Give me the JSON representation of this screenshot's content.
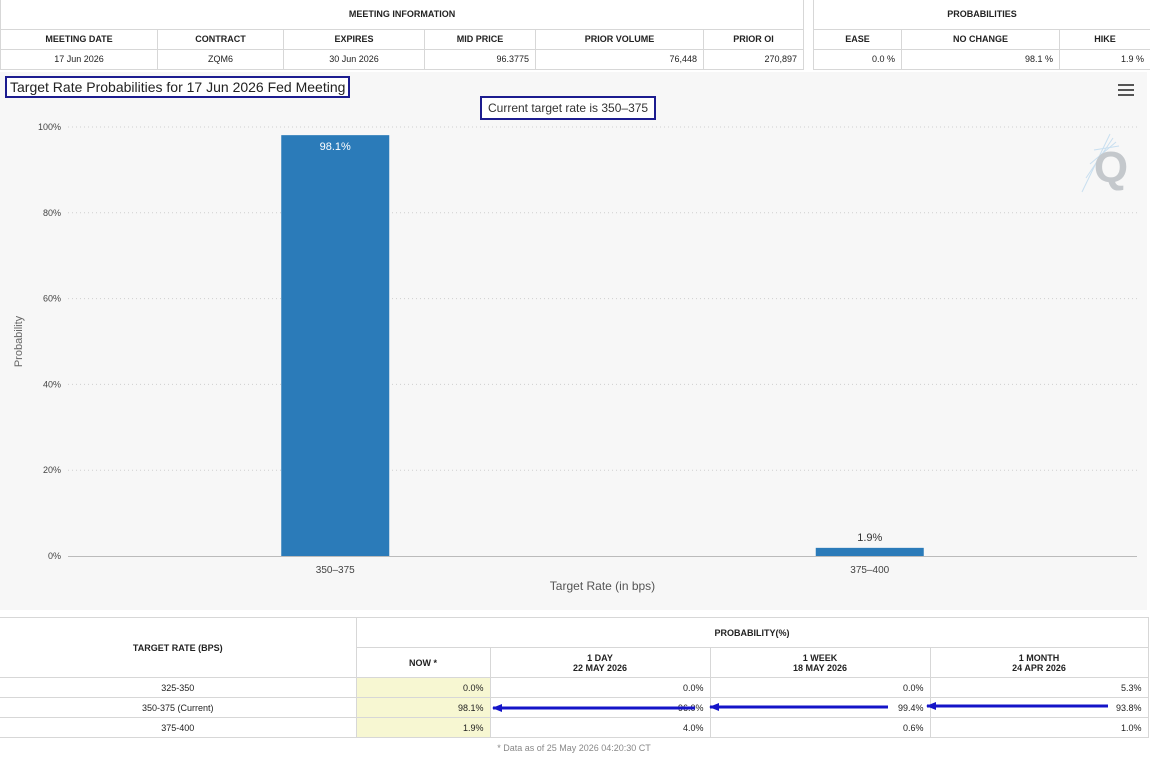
{
  "meeting_info": {
    "section_title": "MEETING INFORMATION",
    "headers": [
      "MEETING DATE",
      "CONTRACT",
      "EXPIRES",
      "MID PRICE",
      "PRIOR VOLUME",
      "PRIOR OI"
    ],
    "row": [
      "17 Jun 2026",
      "ZQM6",
      "30 Jun 2026",
      "96.3775",
      "76,448",
      "270,897"
    ]
  },
  "probabilities": {
    "section_title": "PROBABILITIES",
    "headers": [
      "EASE",
      "NO CHANGE",
      "HIKE"
    ],
    "row": [
      "0.0 %",
      "98.1 %",
      "1.9 %"
    ]
  },
  "chart": {
    "title": "Target Rate Probabilities for 17 Jun 2026 Fed Meeting",
    "subtitle": "Current target rate is 350–375",
    "watermark": "Q",
    "bar_color": "#2b7bb9"
  },
  "chart_data": {
    "type": "bar",
    "title": "Target Rate Probabilities for 17 Jun 2026 Fed Meeting",
    "subtitle": "Current target rate is 350–375",
    "categories": [
      "350–375",
      "375–400"
    ],
    "values": [
      98.1,
      1.9
    ],
    "data_labels": [
      "98.1%",
      "1.9%"
    ],
    "xlabel": "Target Rate (in bps)",
    "ylabel": "Probability",
    "ylim": [
      0,
      100
    ],
    "yticks": [
      "0%",
      "20%",
      "40%",
      "60%",
      "80%",
      "100%"
    ],
    "grid": true,
    "legend": "none"
  },
  "rate_table": {
    "target_header": "TARGET RATE (BPS)",
    "prob_header": "PROBABILITY(%)",
    "columns": [
      {
        "label": "NOW *",
        "date": ""
      },
      {
        "label": "1 DAY",
        "date": "22 MAY 2026"
      },
      {
        "label": "1 WEEK",
        "date": "18 MAY 2026"
      },
      {
        "label": "1 MONTH",
        "date": "24 APR 2026"
      }
    ],
    "rows": [
      {
        "rate": "325-350",
        "values": [
          "0.0%",
          "0.0%",
          "0.0%",
          "5.3%"
        ]
      },
      {
        "rate": "350-375 (Current)",
        "values": [
          "98.1%",
          "96.0%",
          "99.4%",
          "93.8%"
        ]
      },
      {
        "rate": "375-400",
        "values": [
          "1.9%",
          "4.0%",
          "0.6%",
          "1.0%"
        ]
      }
    ],
    "footnote": "* Data as of 25 May 2026 04:20:30 CT",
    "arrow_color": "#1414c8"
  }
}
